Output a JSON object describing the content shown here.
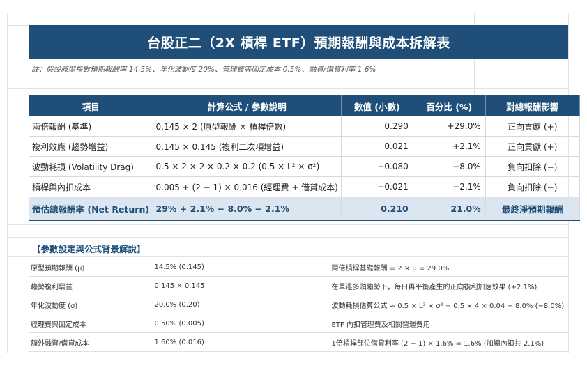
{
  "title": "台股正二（2X 槓桿 ETF）預期報酬與成本拆解表",
  "note": "註：假設原型指數預期報酬率 14.5%、年化波動度 20%、管理費等固定成本 0.5%、融資/借貸利率 1.6%",
  "table": {
    "headers": [
      "項目",
      "計算公式 / 參數說明",
      "數值 (小數)",
      "百分比 (%)",
      "對總報酬影響"
    ],
    "rows": [
      [
        "兩倍報酬 (基準)",
        "0.145 × 2 (原型報酬 × 槓桿倍數)",
        "0.290",
        "+29.0%",
        "正向貢獻 (+)"
      ],
      [
        "複利效應 (趨勢增益)",
        "0.145 × 0.145 (複利二次項增益)",
        "0.021",
        "+2.1%",
        "正向貢獻 (+)"
      ],
      [
        "波動耗損 (Volatility Drag)",
        "0.5 × 2 × 2 × 0.2 × 0.2 (0.5 × L² × σ²)",
        "−0.080",
        "−8.0%",
        "負向扣除 (−)"
      ],
      [
        "槓桿與內扣成本",
        "0.005 + (2 − 1) × 0.016 (經理費 + 借貸成本)",
        "−0.021",
        "−2.1%",
        "負向扣除 (−)"
      ]
    ],
    "total": [
      "預估總報酬率 (Net Return)",
      "29% + 2.1% − 8.0% − 2.1%",
      "0.210",
      "21.0%",
      "最終淨預期報酬"
    ]
  },
  "params_title": "【參數設定與公式背景解說】",
  "params": [
    [
      "原型預期報酬 (μ)",
      "14.5% (0.145)",
      "兩倍槓桿基礎報酬 = 2 × μ = 29.0%"
    ],
    [
      "趨勢複利增益",
      "0.145 × 0.145",
      "在單邊多頭趨勢下，每日再平衡產生的正向複利加速效果 (+2.1%)"
    ],
    [
      "年化波動度 (σ)",
      "20.0% (0.20)",
      "波動耗損估算公式 ≈ 0.5 × L² × σ² = 0.5 × 4 × 0.04 = 8.0% (−8.0%)"
    ],
    [
      "經理費與固定成本",
      "0.50% (0.005)",
      "ETF 內扣管理費及相關營運費用"
    ],
    [
      "額外融資/借貸成本",
      "1.60% (0.016)",
      "1倍槓桿部位借貸利率 (2 − 1) × 1.6% = 1.6% (加總內扣共 2.1%)"
    ]
  ]
}
